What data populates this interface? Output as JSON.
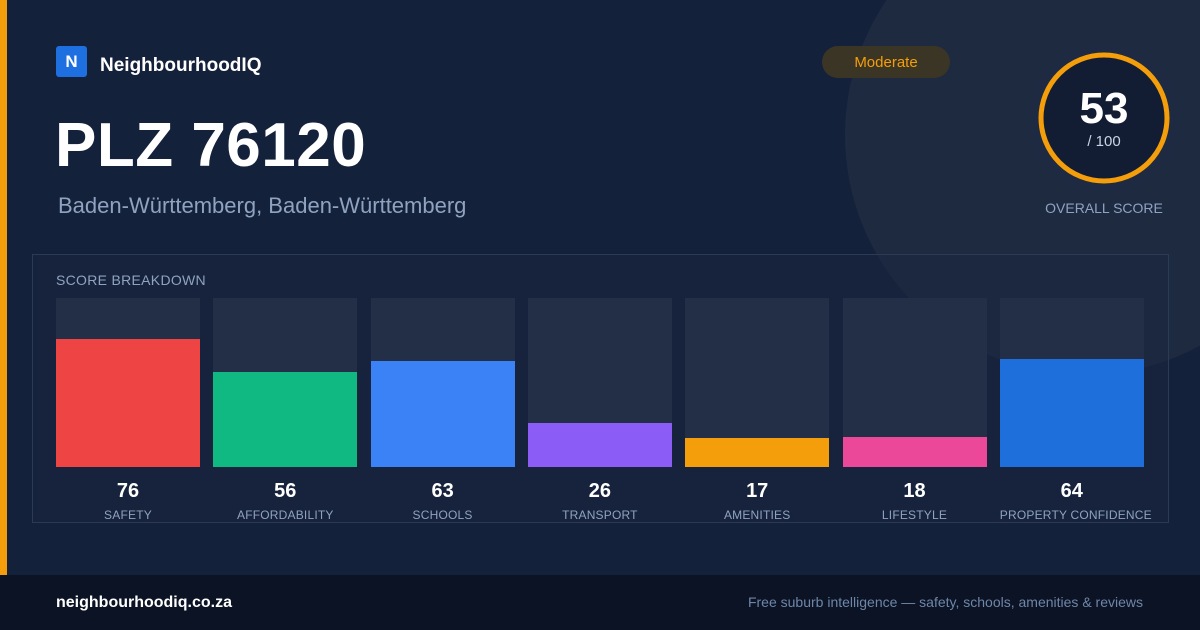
{
  "brand": {
    "logo_letter": "N",
    "name": "NeighbourhoodIQ"
  },
  "header": {
    "title": "PLZ 76120",
    "subtitle": "Baden-Württemberg, Baden-Württemberg",
    "badge": "Moderate"
  },
  "score": {
    "value": "53",
    "max": "/ 100",
    "fraction": 0.53,
    "label": "OVERALL SCORE",
    "ring_color": "#f59e0b"
  },
  "colors": {
    "accent": "#f59e0b",
    "background": "#14213b",
    "track": "#232f47"
  },
  "chart_data": {
    "type": "bar",
    "title": "SCORE BREAKDOWN",
    "ylim": [
      0,
      100
    ],
    "categories": [
      "SAFETY",
      "AFFORDABILITY",
      "SCHOOLS",
      "TRANSPORT",
      "AMENITIES",
      "LIFESTYLE",
      "PROPERTY CONFIDENCE"
    ],
    "values": [
      76,
      56,
      63,
      26,
      17,
      18,
      64
    ],
    "colors": [
      "#ef4444",
      "#10b981",
      "#3b82f6",
      "#8b5cf6",
      "#f59e0b",
      "#ec4899",
      "#1e6fdc"
    ]
  },
  "footer": {
    "url": "neighbourhoodiq.co.za",
    "tagline": "Free suburb intelligence — safety, schools, amenities & reviews"
  }
}
